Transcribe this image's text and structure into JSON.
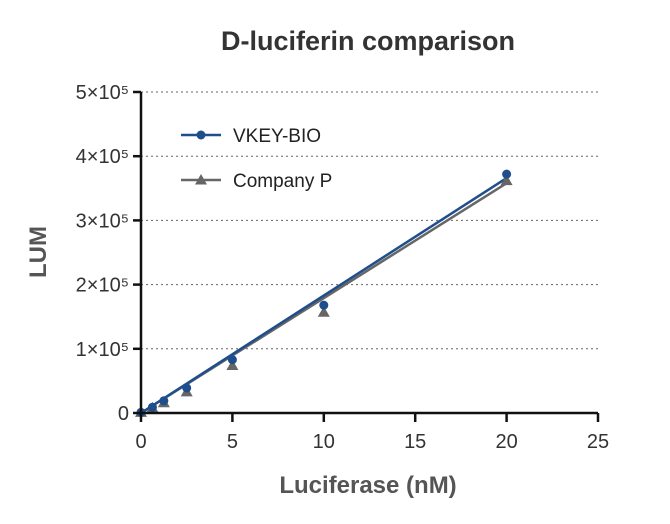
{
  "chart_data": {
    "type": "scatter",
    "title": "D-luciferin comparison",
    "xlabel": "Luciferase  (nM)",
    "ylabel": "LUM",
    "xlim": [
      0,
      25
    ],
    "ylim": [
      0,
      500000
    ],
    "x_ticks": [
      0,
      5,
      10,
      15,
      20,
      25
    ],
    "x_tick_labels": [
      "0",
      "5",
      "10",
      "15",
      "20",
      "25"
    ],
    "y_ticks": [
      0,
      100000,
      200000,
      300000,
      400000,
      500000
    ],
    "y_tick_labels": [
      "0",
      "1×10⁵",
      "2×10⁵",
      "3×10⁵",
      "4×10⁵",
      "5×10⁵"
    ],
    "grid": "horizontal dotted",
    "legend_position": "top-left",
    "series": [
      {
        "name": "VKEY-BIO",
        "color": "#1f4e8c",
        "marker": "circle",
        "x": [
          0,
          0.625,
          1.25,
          2.5,
          5,
          10,
          20
        ],
        "y": [
          1000,
          9000,
          19000,
          39000,
          83000,
          168000,
          372000
        ],
        "fit": [
          [
            0,
            0
          ],
          [
            20,
            366000
          ]
        ]
      },
      {
        "name": "Company P",
        "color": "#666666",
        "marker": "triangle",
        "x": [
          0,
          0.625,
          1.25,
          2.5,
          5,
          10,
          20
        ],
        "y": [
          1000,
          8000,
          16000,
          33000,
          74000,
          157000,
          362000
        ],
        "fit": [
          [
            0,
            0
          ],
          [
            20,
            358000
          ]
        ]
      }
    ]
  }
}
